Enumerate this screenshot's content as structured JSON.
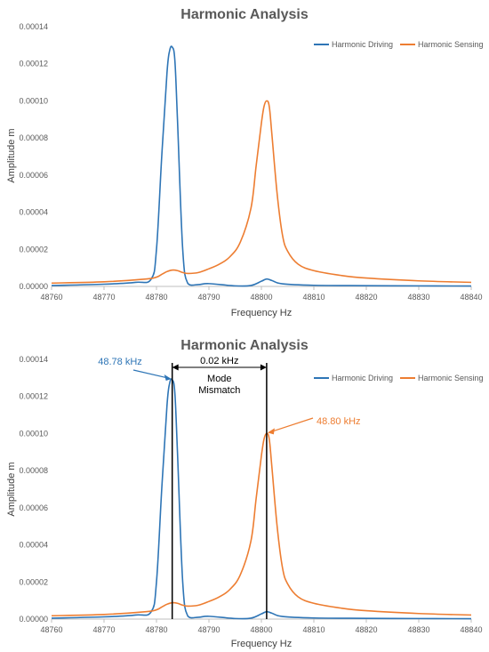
{
  "colors": {
    "series_driving": "#2E75B6",
    "series_sensing": "#ED7D31",
    "axis": "#BFBFBF",
    "text": "#595959",
    "annotation_black": "#000000"
  },
  "chart_data": [
    {
      "type": "line",
      "title": "Harmonic Analysis",
      "xlabel": "Frequency Hz",
      "ylabel": "Amplitude m",
      "xlim": [
        48760,
        48840
      ],
      "ylim": [
        0,
        0.00014
      ],
      "x_ticks": [
        "48760",
        "48770",
        "48780",
        "48790",
        "48800",
        "48810",
        "48820",
        "48830",
        "48840"
      ],
      "y_ticks": [
        "0.00000",
        "0.00002",
        "0.00004",
        "0.00006",
        "0.00008",
        "0.00010",
        "0.00012",
        "0.00014"
      ],
      "grid": false,
      "legend_position": "top-right",
      "series": [
        {
          "name": "Harmonic Driving",
          "color": "#2E75B6",
          "x": [
            48760,
            48770,
            48776,
            48779,
            48780,
            48781,
            48782,
            48782.5,
            48783,
            48783.5,
            48784,
            48785,
            48786,
            48788,
            48790,
            48795,
            48798,
            48800,
            48801,
            48802,
            48804,
            48810,
            48820,
            48830,
            48840
          ],
          "y": [
            5e-07,
            1.2e-06,
            2.2e-06,
            4e-06,
            2e-05,
            7e-05,
            0.000115,
            0.000127,
            0.000129,
            0.000122,
            9e-05,
            2e-05,
            1.5e-06,
            1e-06,
            1.5e-06,
            3e-07,
            5e-07,
            2.8e-06,
            4e-06,
            3.2e-06,
            1.4e-06,
            6e-07,
            4e-07,
            3e-07,
            2e-07
          ]
        },
        {
          "name": "Harmonic Sensing",
          "color": "#ED7D31",
          "x": [
            48760,
            48770,
            48778,
            48780,
            48781,
            48782,
            48783,
            48784,
            48785,
            48786,
            48788,
            48790,
            48792,
            48794,
            48796,
            48798,
            48799,
            48800,
            48800.5,
            48801,
            48801.5,
            48802,
            48803,
            48804,
            48805,
            48807,
            48810,
            48815,
            48820,
            48830,
            48840
          ],
          "y": [
            1.8e-06,
            2.5e-06,
            4e-06,
            5e-06,
            6.5e-06,
            8e-06,
            8.8e-06,
            8.5e-06,
            7.5e-06,
            7e-06,
            7.5e-06,
            9.5e-06,
            1.2e-05,
            1.6e-05,
            2.4e-05,
            4.2e-05,
            6.5e-05,
            8.8e-05,
            9.7e-05,
            0.0001,
            9.7e-05,
            8.2e-05,
            5e-05,
            2.8e-05,
            1.9e-05,
            1.2e-05,
            8.5e-06,
            6e-06,
            4.5e-06,
            3e-06,
            2.2e-06
          ]
        }
      ]
    },
    {
      "type": "line",
      "title": "Harmonic Analysis",
      "xlabel": "Frequency Hz",
      "ylabel": "Amplitude m",
      "xlim": [
        48760,
        48840
      ],
      "ylim": [
        0,
        0.00014
      ],
      "x_ticks": [
        "48760",
        "48770",
        "48780",
        "48790",
        "48800",
        "48810",
        "48820",
        "48830",
        "48840"
      ],
      "y_ticks": [
        "0.00000",
        "0.00002",
        "0.00004",
        "0.00006",
        "0.00008",
        "0.00010",
        "0.00012",
        "0.00014"
      ],
      "grid": false,
      "legend_position": "top-right",
      "series": [
        {
          "name": "Harmonic Driving",
          "color": "#2E75B6",
          "x": [
            48760,
            48770,
            48776,
            48779,
            48780,
            48781,
            48782,
            48782.5,
            48783,
            48783.5,
            48784,
            48785,
            48786,
            48788,
            48790,
            48795,
            48798,
            48800,
            48801,
            48802,
            48804,
            48810,
            48820,
            48830,
            48840
          ],
          "y": [
            5e-07,
            1.2e-06,
            2.2e-06,
            4e-06,
            2e-05,
            7e-05,
            0.000115,
            0.000127,
            0.000129,
            0.000122,
            9e-05,
            2e-05,
            1.5e-06,
            1e-06,
            1.5e-06,
            3e-07,
            5e-07,
            2.8e-06,
            4e-06,
            3.2e-06,
            1.4e-06,
            6e-07,
            4e-07,
            3e-07,
            2e-07
          ]
        },
        {
          "name": "Harmonic Sensing",
          "color": "#ED7D31",
          "x": [
            48760,
            48770,
            48778,
            48780,
            48781,
            48782,
            48783,
            48784,
            48785,
            48786,
            48788,
            48790,
            48792,
            48794,
            48796,
            48798,
            48799,
            48800,
            48800.5,
            48801,
            48801.5,
            48802,
            48803,
            48804,
            48805,
            48807,
            48810,
            48815,
            48820,
            48830,
            48840
          ],
          "y": [
            1.8e-06,
            2.5e-06,
            4e-06,
            5e-06,
            6.5e-06,
            8e-06,
            8.8e-06,
            8.5e-06,
            7.5e-06,
            7e-06,
            7.5e-06,
            9.5e-06,
            1.2e-05,
            1.6e-05,
            2.4e-05,
            4.2e-05,
            6.5e-05,
            8.8e-05,
            9.7e-05,
            0.0001,
            9.7e-05,
            8.2e-05,
            5e-05,
            2.8e-05,
            1.9e-05,
            1.2e-05,
            8.5e-06,
            6e-06,
            4.5e-06,
            3e-06,
            2.2e-06
          ]
        }
      ],
      "annotations": {
        "peak_driving_label": "48.78 kHz",
        "peak_driving_x": 48783,
        "peak_sensing_label": "48.80 kHz",
        "peak_sensing_x": 48801,
        "mismatch_value": "0.02 kHz",
        "mismatch_text_line1": "Mode",
        "mismatch_text_line2": "Mismatch"
      }
    }
  ]
}
